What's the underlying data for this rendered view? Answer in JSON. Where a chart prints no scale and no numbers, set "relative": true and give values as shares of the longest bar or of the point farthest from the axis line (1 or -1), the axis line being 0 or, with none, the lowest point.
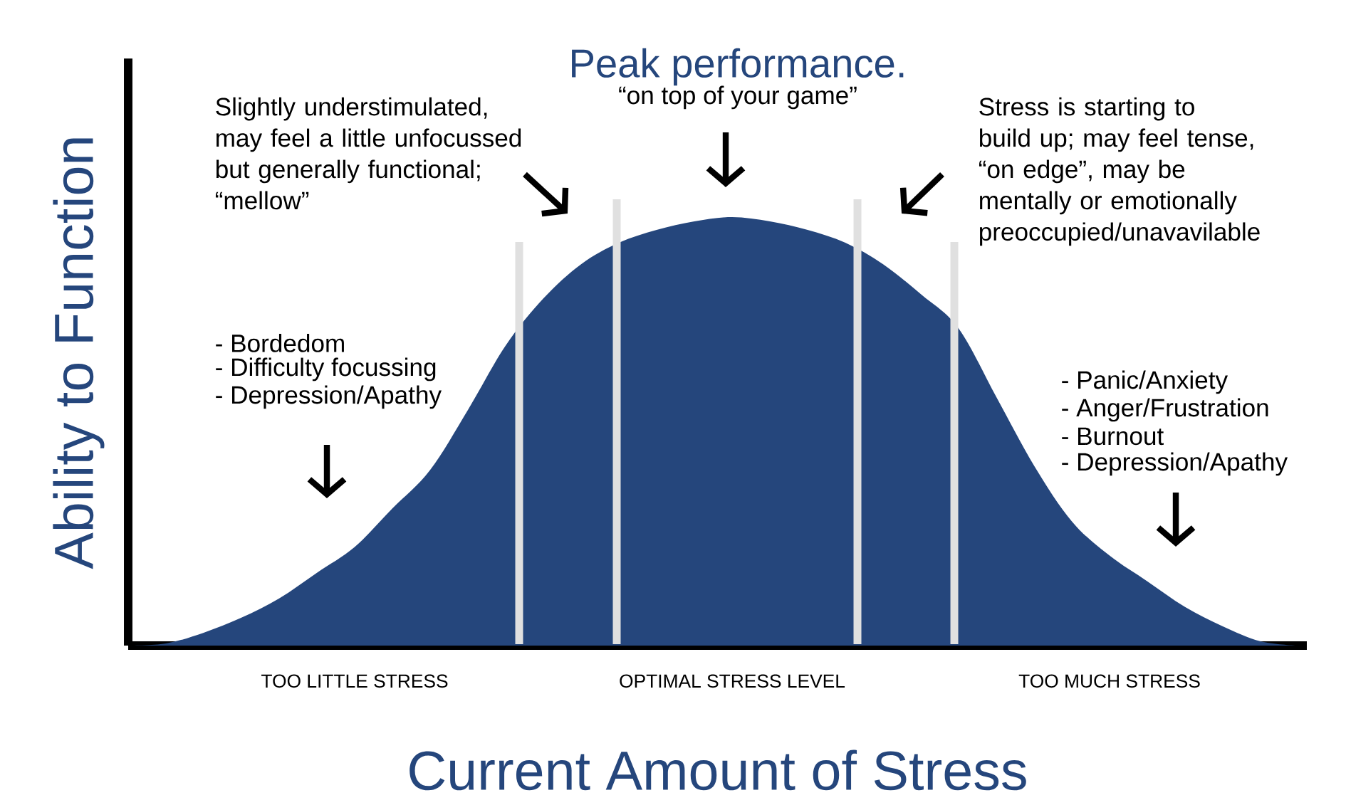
{
  "chart_data": {
    "type": "area",
    "relative": true,
    "xlabel": "Current Amount of Stress",
    "ylabel": "Ability to Function",
    "categories": [
      null,
      null,
      null,
      null,
      null,
      null,
      "TOO LITTLE STRESS",
      null,
      null,
      null,
      null,
      null,
      null,
      null,
      null,
      null,
      "OPTIMAL STRESS LEVEL",
      null,
      null,
      null,
      null,
      null,
      null,
      null,
      null,
      null,
      "TOO MUCH STRESS",
      null,
      null,
      null,
      null,
      null
    ],
    "values": [
      0,
      0.005,
      0.03,
      0.065,
      0.11,
      0.17,
      0.23,
      0.32,
      0.41,
      0.55,
      0.7,
      0.81,
      0.89,
      0.94,
      0.97,
      0.99,
      1.0,
      0.99,
      0.97,
      0.94,
      0.89,
      0.82,
      0.74,
      0.58,
      0.42,
      0.29,
      0.21,
      0.15,
      0.09,
      0.045,
      0.01,
      0
    ],
    "color": "#25467c",
    "tick_labels": "x",
    "annotations": [
      "Peak performance.",
      "“on top of your game”",
      "Slightly understimulated, may feel a little unfocussed but generally functional; “mellow”",
      "Stress is starting to build up; may feel tense, “on edge”, may be mentally or emotionally preoccupied/unavavilable",
      "- Bordedom",
      "- Difficulty focussing",
      "- Depression/Apathy",
      "- Panic/Anxiety",
      "- Anger/Frustration",
      "- Burnout",
      "- Depression/Apathy"
    ]
  }
}
